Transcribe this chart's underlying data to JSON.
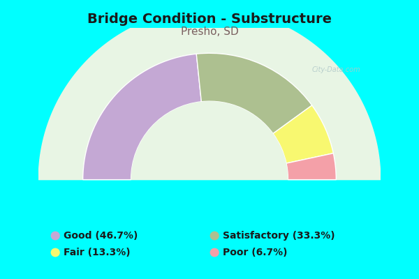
{
  "title": "Bridge Condition - Substructure",
  "subtitle": "Presho, SD",
  "background_color": "#00FFFF",
  "chart_bg_color_center": "#f0faf0",
  "chart_bg_color_edge": "#d8eed8",
  "segments": [
    {
      "label": "Good",
      "pct": 46.7,
      "color": "#c4a8d4"
    },
    {
      "label": "Satisfactory",
      "pct": 33.3,
      "color": "#adc090"
    },
    {
      "label": "Fair",
      "pct": 13.3,
      "color": "#f8f870"
    },
    {
      "label": "Poor",
      "pct": 6.7,
      "color": "#f4a0a8"
    }
  ],
  "legend_colors": [
    "#c4a8d4",
    "#adc090",
    "#f8f870",
    "#f4a0a8"
  ],
  "legend_labels": [
    "Good (46.7%)",
    "Satisfactory (33.3%)",
    "Fair (13.3%)",
    "Poor (6.7%)"
  ],
  "title_fontsize": 14,
  "subtitle_fontsize": 11,
  "legend_fontsize": 10,
  "title_color": "#1a1a1a",
  "subtitle_color": "#7a6060",
  "outer_r": 1.0,
  "inner_r": 0.62,
  "watermark": "City-Data.com"
}
